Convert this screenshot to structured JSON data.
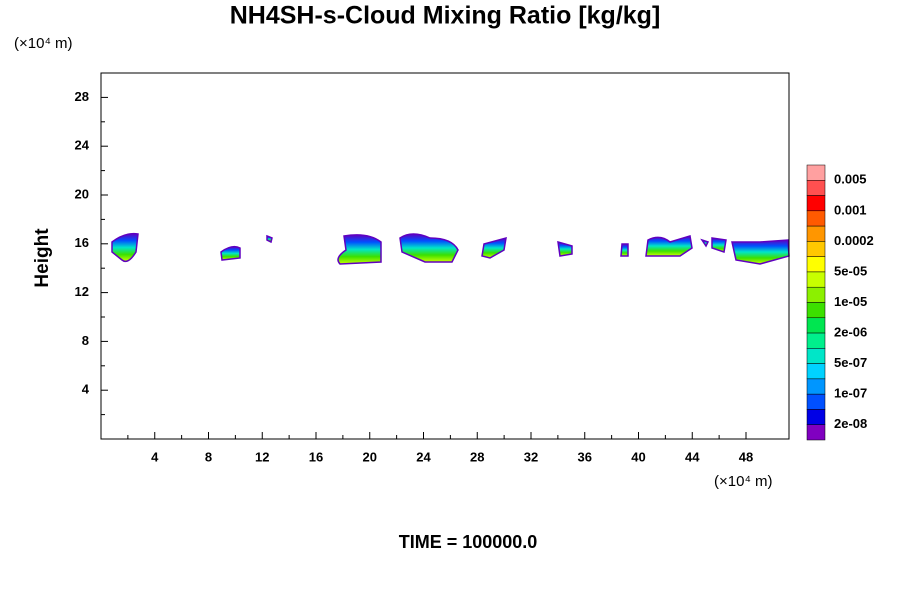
{
  "chart_data": {
    "type": "contour",
    "title": "NH4SH-s-Cloud Mixing Ratio [kg/kg]",
    "y_unit_label": "(×10⁴ m)",
    "x_unit_label": "(×10⁴ m)",
    "ylabel": "Height",
    "footer": "TIME = 100000.0",
    "xlim": [
      0,
      51.2
    ],
    "xticks": [
      4,
      8,
      12,
      16,
      20,
      24,
      28,
      32,
      36,
      40,
      44,
      48
    ],
    "ylim": [
      0,
      30
    ],
    "yticks": [
      4,
      8,
      12,
      16,
      20,
      24,
      28
    ],
    "colorbar": {
      "colors": [
        "#ffa0a0",
        "#ff5050",
        "#ff0000",
        "#ff5a00",
        "#ff9600",
        "#ffc800",
        "#ffff00",
        "#c8ff00",
        "#8cf000",
        "#3ce000",
        "#00e650",
        "#00f08c",
        "#00e6c8",
        "#00d2ff",
        "#0096ff",
        "#0050ff",
        "#0000e6",
        "#8000c0"
      ],
      "labels": [
        "0.005",
        "0.001",
        "0.0002",
        "5e-05",
        "1e-05",
        "2e-06",
        "5e-07",
        "1e-07",
        "2e-08"
      ]
    }
  }
}
